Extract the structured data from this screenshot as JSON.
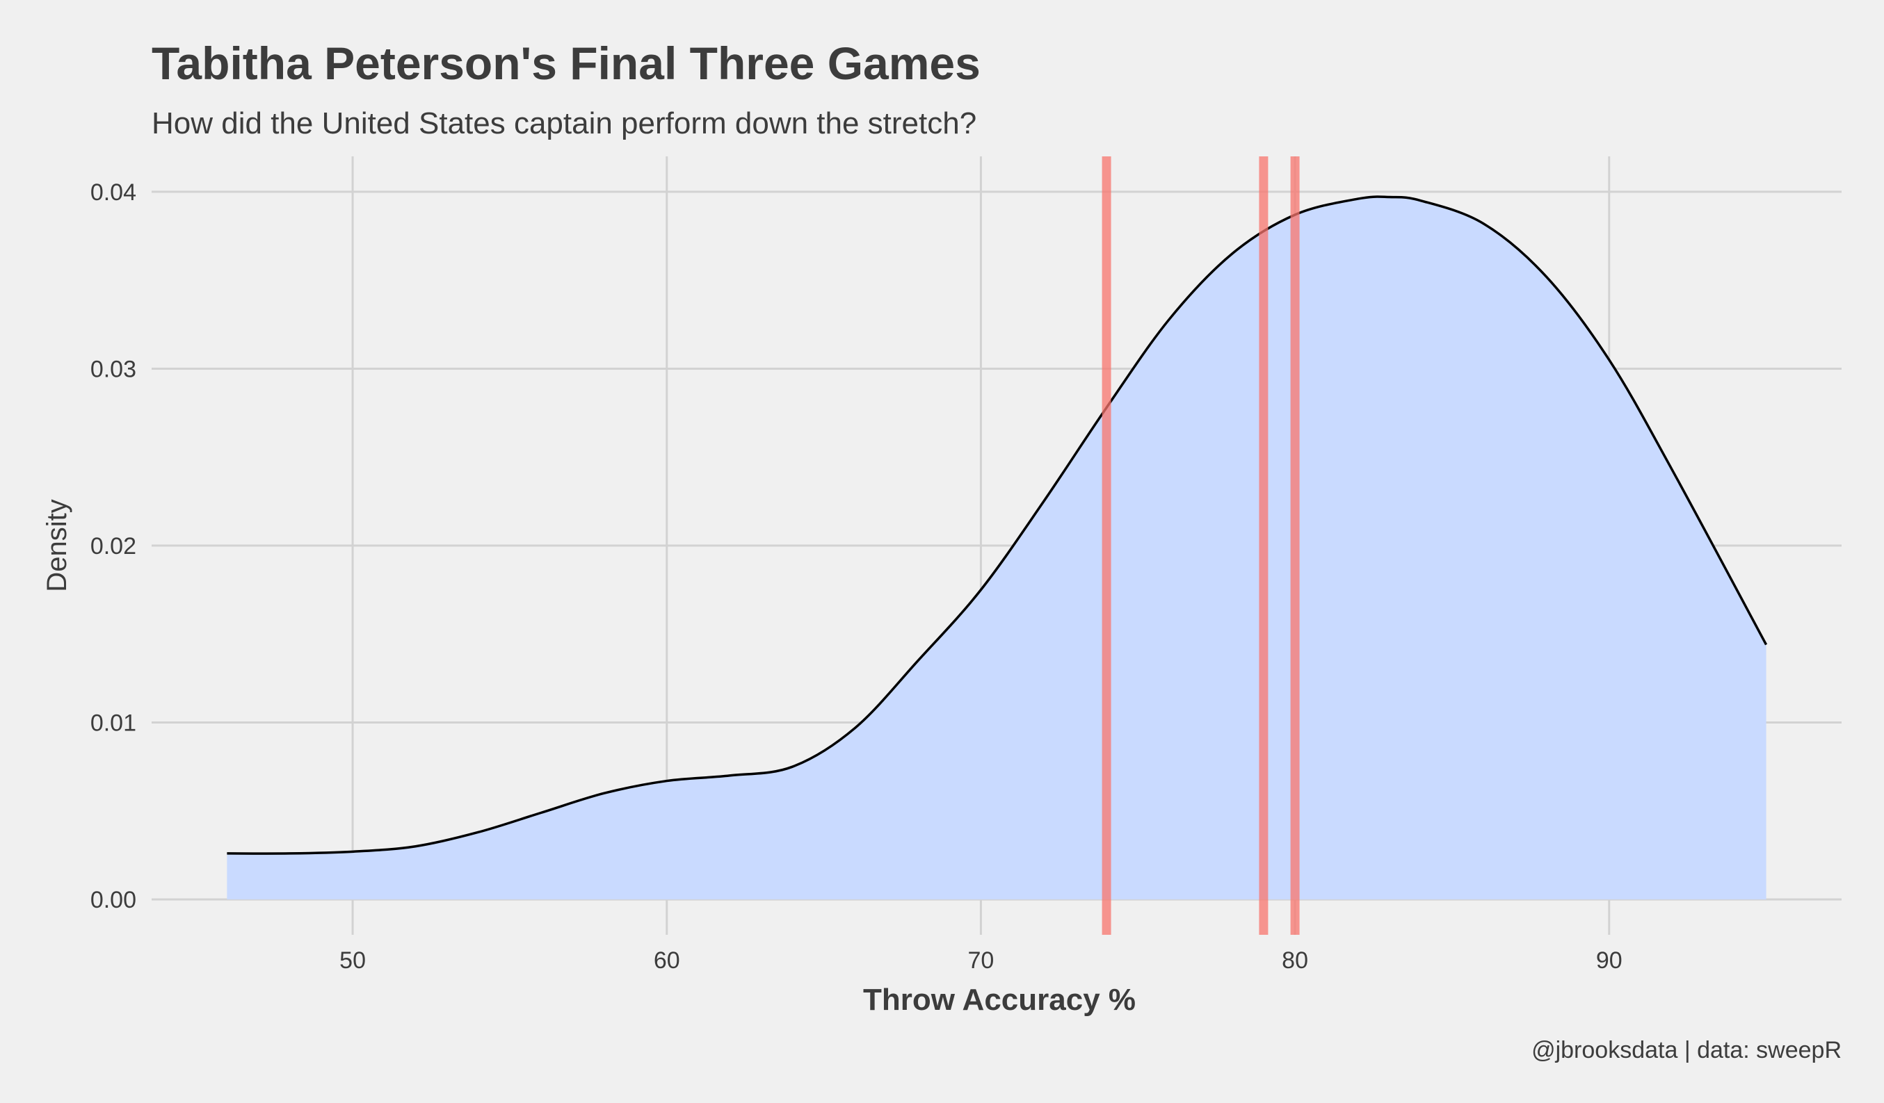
{
  "chart_data": {
    "type": "area",
    "title": "Tabitha Peterson's Final Three Games",
    "subtitle": "How did the United States captain perform down the stretch?",
    "xlabel": "Throw Accuracy %",
    "ylabel": "Density",
    "caption": "@jbrooksdata | data: sweepR",
    "xlim": [
      43.6,
      97.4
    ],
    "ylim": [
      -0.002,
      0.042
    ],
    "x_ticks": [
      50,
      60,
      70,
      80,
      90
    ],
    "x_tick_labels": [
      "50",
      "60",
      "70",
      "80",
      "90"
    ],
    "y_ticks": [
      0.0,
      0.01,
      0.02,
      0.03,
      0.04
    ],
    "y_tick_labels": [
      "0.00",
      "0.01",
      "0.02",
      "0.03",
      "0.04"
    ],
    "grid": true,
    "series": [
      {
        "x": [
          46,
          48,
          50,
          52,
          54,
          56,
          58,
          60,
          62,
          64,
          66,
          68,
          70,
          72,
          74,
          76,
          78,
          80,
          82,
          83,
          84,
          86,
          88,
          90,
          92,
          95
        ],
        "y": [
          0.0026,
          0.0026,
          0.0027,
          0.003,
          0.0038,
          0.0049,
          0.006,
          0.0067,
          0.007,
          0.0075,
          0.0097,
          0.0135,
          0.0175,
          0.0225,
          0.0278,
          0.0328,
          0.0365,
          0.0387,
          0.0396,
          0.0397,
          0.0395,
          0.0382,
          0.0352,
          0.0305,
          0.0243,
          0.0144
        ],
        "fill": "#c9daff",
        "stroke": "#000000"
      }
    ],
    "reference_lines": {
      "x": [
        74,
        79,
        80
      ],
      "color": "#f8766d"
    }
  }
}
